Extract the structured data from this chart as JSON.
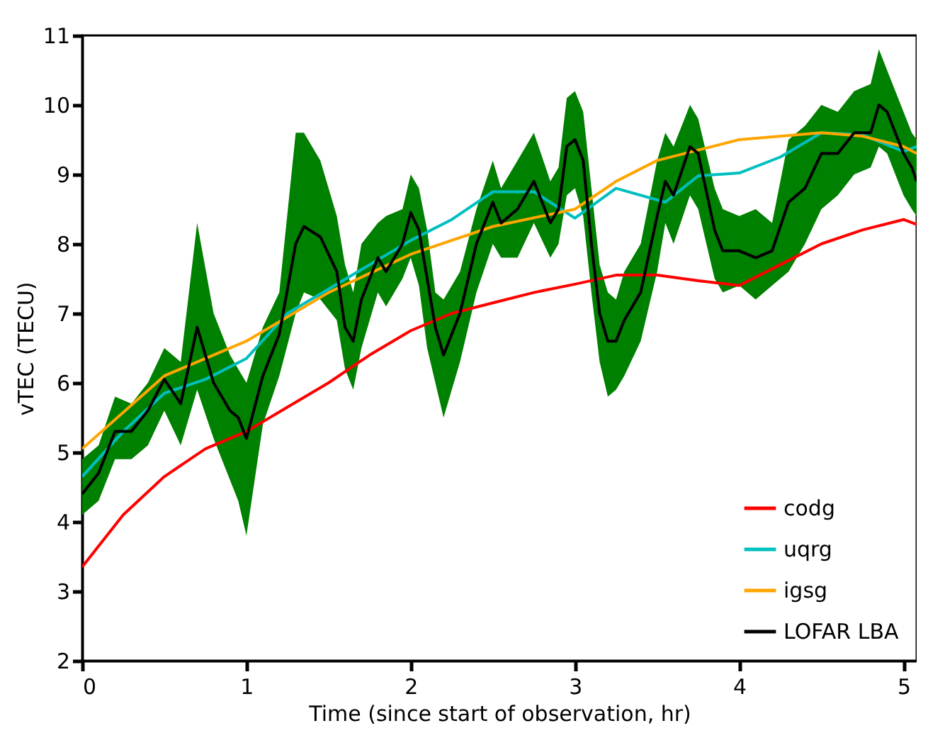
{
  "chart_data": {
    "type": "line",
    "xlabel": "Time (since start of observation, hr)",
    "ylabel": "vTEC (TECU)",
    "xlim": [
      0,
      5.08
    ],
    "ylim": [
      2,
      11
    ],
    "xticks": [
      0,
      1,
      2,
      3,
      4,
      5
    ],
    "yticks": [
      2,
      3,
      4,
      5,
      6,
      7,
      8,
      9,
      10,
      11
    ],
    "grid": false,
    "legend": "bottom right",
    "line_style": "solid",
    "marker": "none",
    "series": [
      {
        "name": "codg",
        "color": "#ff0000",
        "x": [
          0,
          0.25,
          0.5,
          0.75,
          1,
          1.25,
          1.5,
          1.75,
          2,
          2.25,
          2.5,
          2.75,
          3,
          3.25,
          3.5,
          3.75,
          4,
          4.25,
          4.5,
          4.75,
          5,
          5.08
        ],
        "values": [
          3.35,
          4.1,
          4.65,
          5.05,
          5.3,
          5.65,
          6.0,
          6.4,
          6.75,
          7.0,
          7.15,
          7.3,
          7.42,
          7.55,
          7.55,
          7.47,
          7.4,
          7.7,
          8.0,
          8.2,
          8.35,
          8.28
        ]
      },
      {
        "name": "uqrg",
        "color": "#00bfbf",
        "x": [
          0,
          0.25,
          0.5,
          0.75,
          1,
          1.25,
          1.5,
          1.75,
          2,
          2.25,
          2.5,
          2.75,
          3,
          3.25,
          3.55,
          3.75,
          4,
          4.25,
          4.5,
          4.75,
          5,
          5.08
        ],
        "values": [
          4.65,
          5.3,
          5.85,
          6.05,
          6.35,
          7.0,
          7.35,
          7.7,
          8.05,
          8.35,
          8.75,
          8.75,
          8.37,
          8.8,
          8.6,
          8.98,
          9.02,
          9.25,
          9.6,
          9.57,
          9.33,
          9.4
        ]
      },
      {
        "name": "igsg",
        "color": "#ffa500",
        "x": [
          0,
          0.5,
          1,
          1.5,
          2,
          2.5,
          3,
          3.25,
          3.5,
          4,
          4.5,
          4.75,
          5,
          5.08
        ],
        "values": [
          5.05,
          6.1,
          6.6,
          7.3,
          7.85,
          8.25,
          8.5,
          8.9,
          9.2,
          9.5,
          9.6,
          9.55,
          9.4,
          9.3
        ]
      },
      {
        "name": "LOFAR LBA",
        "color": "#000000",
        "x": [
          0,
          0.1,
          0.2,
          0.3,
          0.4,
          0.5,
          0.6,
          0.7,
          0.8,
          0.9,
          0.95,
          1.0,
          1.1,
          1.2,
          1.3,
          1.35,
          1.45,
          1.55,
          1.6,
          1.65,
          1.7,
          1.8,
          1.85,
          1.95,
          2.0,
          2.05,
          2.1,
          2.15,
          2.2,
          2.3,
          2.4,
          2.5,
          2.55,
          2.65,
          2.75,
          2.85,
          2.9,
          2.95,
          3.0,
          3.05,
          3.1,
          3.15,
          3.2,
          3.25,
          3.3,
          3.4,
          3.5,
          3.55,
          3.6,
          3.7,
          3.75,
          3.85,
          3.9,
          4.0,
          4.1,
          4.2,
          4.3,
          4.4,
          4.5,
          4.6,
          4.7,
          4.8,
          4.85,
          4.9,
          5.0,
          5.05,
          5.08
        ],
        "values": [
          4.4,
          4.7,
          5.3,
          5.3,
          5.6,
          6.05,
          5.7,
          6.8,
          6.0,
          5.6,
          5.5,
          5.2,
          6.1,
          6.7,
          8.0,
          8.25,
          8.1,
          7.6,
          6.8,
          6.6,
          7.2,
          7.8,
          7.6,
          8.0,
          8.45,
          8.2,
          7.5,
          6.8,
          6.4,
          7.0,
          8.0,
          8.6,
          8.3,
          8.5,
          8.9,
          8.3,
          8.5,
          9.4,
          9.5,
          9.2,
          8.0,
          7.0,
          6.6,
          6.6,
          6.9,
          7.3,
          8.4,
          8.9,
          8.7,
          9.4,
          9.3,
          8.2,
          7.9,
          7.9,
          7.8,
          7.9,
          8.6,
          8.8,
          9.3,
          9.3,
          9.6,
          9.6,
          10.0,
          9.9,
          9.3,
          9.1,
          8.9
        ],
        "lower": [
          4.1,
          4.3,
          4.9,
          4.9,
          5.1,
          5.6,
          5.1,
          5.9,
          5.2,
          4.6,
          4.3,
          3.8,
          5.4,
          6.1,
          7.0,
          7.3,
          7.2,
          6.9,
          6.2,
          5.9,
          6.5,
          7.3,
          7.1,
          7.5,
          7.8,
          7.4,
          6.5,
          6.0,
          5.5,
          6.3,
          7.3,
          8.0,
          7.8,
          7.8,
          8.3,
          7.8,
          8.0,
          8.7,
          8.8,
          8.4,
          7.3,
          6.3,
          5.8,
          5.9,
          6.1,
          6.6,
          7.6,
          8.3,
          8.0,
          8.7,
          8.5,
          7.5,
          7.3,
          7.4,
          7.2,
          7.4,
          7.6,
          8.0,
          8.5,
          8.7,
          9.0,
          9.1,
          9.4,
          9.3,
          8.7,
          8.5,
          8.4
        ],
        "upper": [
          4.9,
          5.1,
          5.8,
          5.7,
          6.0,
          6.5,
          6.3,
          8.3,
          7.0,
          6.4,
          6.2,
          6.0,
          6.8,
          7.3,
          9.6,
          9.6,
          9.2,
          8.4,
          7.7,
          7.3,
          8.0,
          8.3,
          8.4,
          8.5,
          9.0,
          8.8,
          8.2,
          7.3,
          7.2,
          7.6,
          8.5,
          9.2,
          8.8,
          9.2,
          9.6,
          8.9,
          9.1,
          10.1,
          10.2,
          9.9,
          8.8,
          7.7,
          7.3,
          7.2,
          7.6,
          8.0,
          9.2,
          9.6,
          9.4,
          10.0,
          9.8,
          8.8,
          8.5,
          8.4,
          8.5,
          8.3,
          9.5,
          9.7,
          10.0,
          9.9,
          10.2,
          10.3,
          10.8,
          10.5,
          9.9,
          9.6,
          9.5
        ]
      }
    ]
  }
}
